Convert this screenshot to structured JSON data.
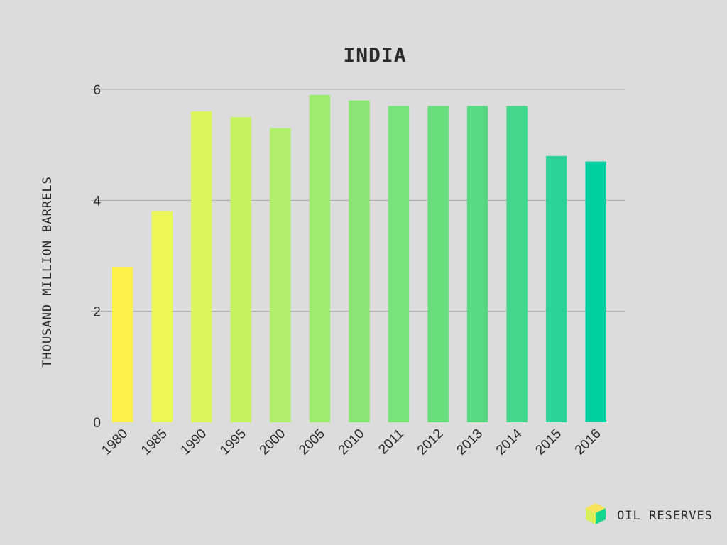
{
  "chart_data": {
    "type": "bar",
    "title": "INDIA",
    "ylabel": "THOUSAND MILLION BARRELS",
    "xlabel": "",
    "categories": [
      "1980",
      "1985",
      "1990",
      "1995",
      "2000",
      "2005",
      "2010",
      "2011",
      "2012",
      "2013",
      "2014",
      "2015",
      "2016"
    ],
    "values": [
      2.8,
      3.8,
      5.6,
      5.5,
      5.3,
      5.9,
      5.8,
      5.7,
      5.7,
      5.7,
      5.7,
      4.8,
      4.7
    ],
    "ylim": [
      0,
      6
    ],
    "yticks": [
      0,
      2,
      4,
      6
    ],
    "grid": true,
    "bar_colors": [
      "#fcf24a",
      "#ecf655",
      "#d9f55b",
      "#c6f262",
      "#b3ee6a",
      "#9eea6e",
      "#8ae674",
      "#78e378",
      "#68df7c",
      "#55da83",
      "#44d68a",
      "#2cd296",
      "#00cf9f"
    ]
  },
  "brand": {
    "label": "OIL RESERVES",
    "icon": "cube-icon",
    "colors": {
      "top": "#f8e45a",
      "left": "#d8ef5a",
      "right": "#19d68f"
    }
  }
}
